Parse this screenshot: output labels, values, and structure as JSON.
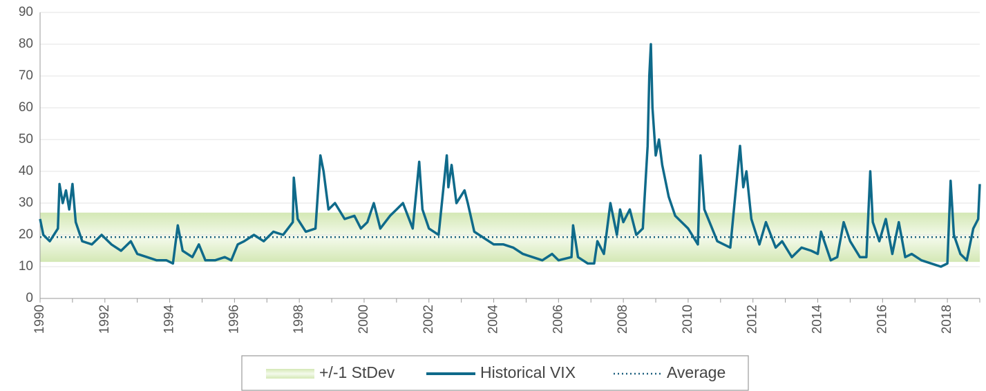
{
  "chart_data": {
    "type": "line",
    "x": [
      1990.0,
      1990.1,
      1990.3,
      1990.55,
      1990.6,
      1990.7,
      1990.8,
      1990.9,
      1991.0,
      1991.1,
      1991.3,
      1991.6,
      1991.9,
      1992.2,
      1992.5,
      1992.8,
      1993.0,
      1993.3,
      1993.6,
      1993.9,
      1994.1,
      1994.25,
      1994.4,
      1994.7,
      1994.9,
      1995.1,
      1995.4,
      1995.7,
      1995.9,
      1996.1,
      1996.3,
      1996.6,
      1996.9,
      1997.2,
      1997.5,
      1997.8,
      1997.83,
      1997.95,
      1998.2,
      1998.5,
      1998.65,
      1998.75,
      1998.9,
      1999.1,
      1999.4,
      1999.7,
      1999.9,
      2000.1,
      2000.3,
      2000.5,
      2000.8,
      2001.0,
      2001.2,
      2001.5,
      2001.7,
      2001.8,
      2002.0,
      2002.3,
      2002.55,
      2002.6,
      2002.7,
      2002.85,
      2003.1,
      2003.2,
      2003.4,
      2003.7,
      2004.0,
      2004.3,
      2004.6,
      2004.9,
      2005.2,
      2005.5,
      2005.8,
      2006.0,
      2006.4,
      2006.45,
      2006.6,
      2006.9,
      2007.1,
      2007.2,
      2007.4,
      2007.6,
      2007.8,
      2007.9,
      2008.0,
      2008.2,
      2008.4,
      2008.6,
      2008.75,
      2008.8,
      2008.85,
      2008.9,
      2009.0,
      2009.1,
      2009.2,
      2009.4,
      2009.6,
      2009.8,
      2010.0,
      2010.3,
      2010.38,
      2010.5,
      2010.7,
      2010.9,
      2011.1,
      2011.3,
      2011.6,
      2011.7,
      2011.8,
      2011.95,
      2012.2,
      2012.4,
      2012.7,
      2012.9,
      2013.2,
      2013.5,
      2013.8,
      2014.0,
      2014.1,
      2014.4,
      2014.6,
      2014.8,
      2015.0,
      2015.3,
      2015.5,
      2015.62,
      2015.7,
      2015.9,
      2016.1,
      2016.3,
      2016.5,
      2016.7,
      2016.9,
      2017.2,
      2017.5,
      2017.8,
      2018.0,
      2018.1,
      2018.2,
      2018.4,
      2018.6,
      2018.8,
      2018.95,
      2019.0
    ],
    "series": [
      {
        "name": "Historical VIX",
        "color": "#0f6a8a",
        "values": [
          25,
          20,
          18,
          22,
          36,
          30,
          34,
          28,
          36,
          24,
          18,
          17,
          20,
          17,
          15,
          18,
          14,
          13,
          12,
          12,
          11,
          23,
          15,
          13,
          17,
          12,
          12,
          13,
          12,
          17,
          18,
          20,
          18,
          21,
          20,
          24,
          38,
          25,
          21,
          22,
          45,
          40,
          28,
          30,
          25,
          26,
          22,
          24,
          30,
          22,
          26,
          28,
          30,
          22,
          43,
          28,
          22,
          20,
          45,
          35,
          42,
          30,
          34,
          30,
          21,
          19,
          17,
          17,
          16,
          14,
          13,
          12,
          14,
          12,
          13,
          23,
          13,
          11,
          11,
          18,
          14,
          30,
          20,
          28,
          24,
          28,
          20,
          22,
          48,
          70,
          80,
          60,
          45,
          50,
          42,
          32,
          26,
          24,
          22,
          17,
          45,
          28,
          23,
          18,
          17,
          16,
          48,
          35,
          40,
          25,
          17,
          24,
          16,
          18,
          13,
          16,
          15,
          14,
          21,
          12,
          13,
          24,
          18,
          13,
          13,
          40,
          24,
          18,
          25,
          14,
          24,
          13,
          14,
          12,
          11,
          10,
          11,
          37,
          20,
          14,
          12,
          22,
          25,
          36
        ]
      }
    ],
    "band": {
      "name": "+/-1 StDev",
      "lower": 11.5,
      "upper": 27,
      "color": "#d4e8b5"
    },
    "average": {
      "name": "Average",
      "value": 19.3,
      "color": "#1a5f7e"
    },
    "xlim": [
      1990,
      2019
    ],
    "xticks": [
      1990,
      1992,
      1994,
      1996,
      1998,
      2000,
      2002,
      2004,
      2006,
      2008,
      2010,
      2012,
      2014,
      2016,
      2018
    ],
    "xminor_ticks": [
      1991,
      1993,
      1995,
      1997,
      1999,
      2001,
      2003,
      2005,
      2007,
      2009,
      2011,
      2013,
      2015,
      2017,
      2019
    ],
    "ylim": [
      0,
      90
    ],
    "yticks": [
      0,
      10,
      20,
      30,
      40,
      50,
      60,
      70,
      80,
      90
    ],
    "grid": true,
    "legend": "bottom"
  }
}
